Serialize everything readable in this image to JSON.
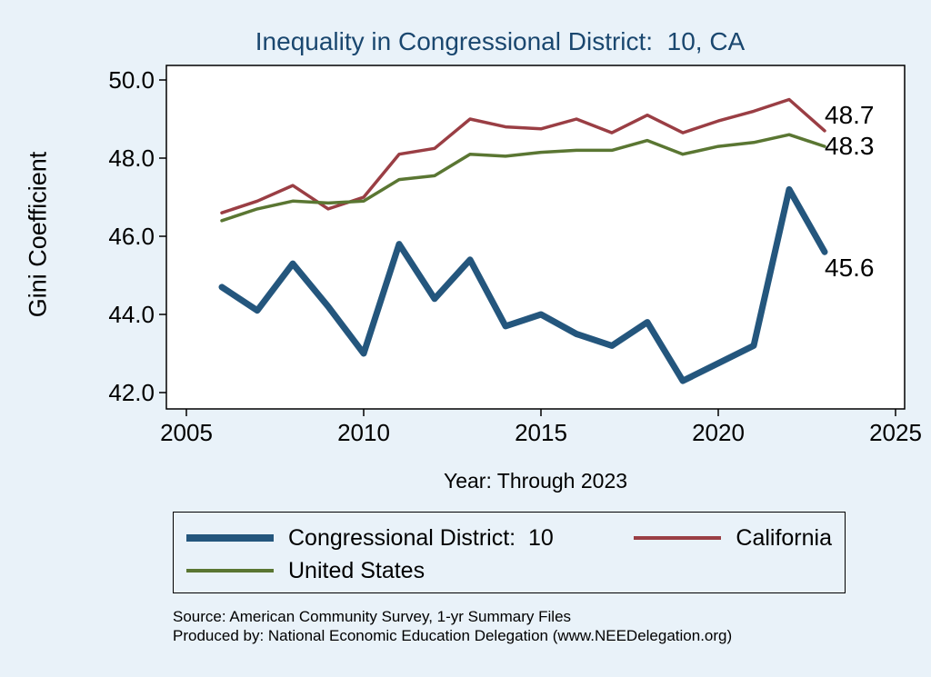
{
  "title": "Inequality in Congressional District:  10, CA",
  "y_axis_label": "Gini Coefficient",
  "x_axis_label": "Year: Through 2023",
  "source_line1": "Source: American Community Survey, 1-yr Summary Files",
  "source_line2": "Produced by: National Economic Education Delegation (www.NEEDelegation.org)",
  "colors": {
    "background": "#e9f2f9",
    "plot_background": "#ffffff",
    "title_text": "#1a476f",
    "axis_text": "#000000",
    "district_line": "#24567d",
    "california_line": "#9a3e44",
    "us_line": "#5a7632"
  },
  "chart_data": {
    "type": "line",
    "title": "Inequality in Congressional District:  10, CA",
    "xlabel": "Year: Through 2023",
    "ylabel": "Gini Coefficient",
    "x_range": [
      2005,
      2025
    ],
    "ylim": [
      42.0,
      50.0
    ],
    "grid": false,
    "legend_position": "bottom",
    "x": [
      2006,
      2007,
      2008,
      2009,
      2010,
      2011,
      2012,
      2013,
      2014,
      2015,
      2016,
      2017,
      2018,
      2019,
      2020,
      2021,
      2022,
      2023
    ],
    "xticks": [
      2005,
      2010,
      2015,
      2020,
      2025
    ],
    "xtick_labels": [
      "2005",
      "2010",
      "2015",
      "2020",
      "2025"
    ],
    "yticks": [
      50.0,
      48.0,
      46.0,
      44.0,
      42.0
    ],
    "ytick_labels": [
      "50.0",
      "48.0",
      "46.0",
      "44.0",
      "42.0"
    ],
    "series": [
      {
        "name": "Congressional District:  10",
        "color": "#24567d",
        "end_label": "45.6",
        "values": [
          44.7,
          44.1,
          45.3,
          44.2,
          43.0,
          45.8,
          44.4,
          45.4,
          43.7,
          44.0,
          43.5,
          43.2,
          43.8,
          42.3,
          42.75,
          43.2,
          47.2,
          45.6
        ]
      },
      {
        "name": "California",
        "color": "#9a3e44",
        "end_label": "48.7",
        "values": [
          46.6,
          46.9,
          47.3,
          46.7,
          47.0,
          48.1,
          48.25,
          49.0,
          48.8,
          48.75,
          49.0,
          48.65,
          49.1,
          48.65,
          48.95,
          49.2,
          49.5,
          48.7
        ]
      },
      {
        "name": "United States",
        "color": "#5a7632",
        "end_label": "48.3",
        "values": [
          46.4,
          46.7,
          46.9,
          46.85,
          46.9,
          47.45,
          47.55,
          48.1,
          48.05,
          48.15,
          48.2,
          48.2,
          48.45,
          48.1,
          48.3,
          48.4,
          48.6,
          48.3
        ]
      }
    ]
  }
}
